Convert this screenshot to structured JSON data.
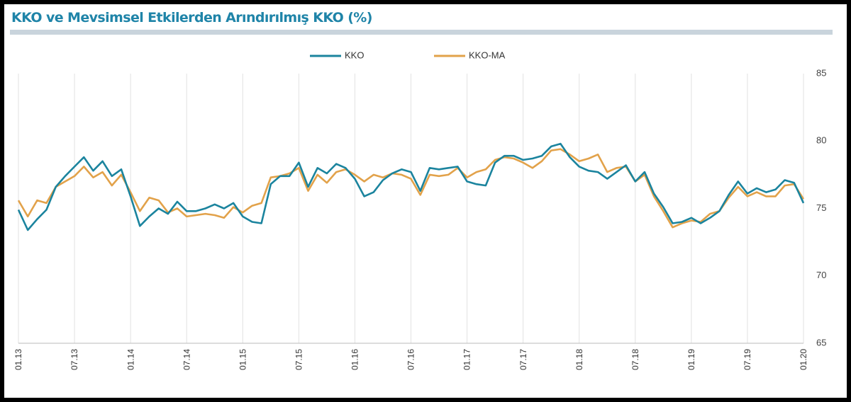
{
  "title": "KKO ve Mevsimsel Etkilerden Arındırılmış KKO (%)",
  "colors": {
    "title": "#1f84a8",
    "kko": "#1b849e",
    "kko_ma": "#e2a24a"
  },
  "chart_data": {
    "type": "line",
    "title": "KKO ve Mevsimsel Etkilerden Arındırılmış KKO (%)",
    "xlabel": "",
    "ylabel": "",
    "ylim": [
      65,
      85
    ],
    "yticks": [
      65,
      70,
      75,
      80,
      85
    ],
    "y_axis_position": "right",
    "grid": "vertical",
    "legend_position": "top-center",
    "xtick_labels": [
      "01.13",
      "07.13",
      "01.14",
      "07.14",
      "01.15",
      "07.15",
      "01.16",
      "07.16",
      "01.17",
      "07.17",
      "01.18",
      "07.18",
      "01.19",
      "07.19",
      "01.20"
    ],
    "series": [
      {
        "name": "KKO",
        "color": "#1b849e",
        "values": [
          74.9,
          73.4,
          74.2,
          74.9,
          76.6,
          77.4,
          78.1,
          78.8,
          77.8,
          78.5,
          77.4,
          77.9,
          75.9,
          73.7,
          74.4,
          75.0,
          74.6,
          75.5,
          74.8,
          74.8,
          75.0,
          75.3,
          75.0,
          75.4,
          74.4,
          74.0,
          73.9,
          76.8,
          77.4,
          77.4,
          78.4,
          76.6,
          78.0,
          77.6,
          78.3,
          78.0,
          77.2,
          75.9,
          76.2,
          77.1,
          77.6,
          77.9,
          77.7,
          76.3,
          78.0,
          77.9,
          78.0,
          78.1,
          77.0,
          76.8,
          76.7,
          78.4,
          78.9,
          78.9,
          78.6,
          78.7,
          78.9,
          79.6,
          79.8,
          78.8,
          78.1,
          77.8,
          77.7,
          77.2,
          77.7,
          78.2,
          77.0,
          77.7,
          76.1,
          75.1,
          73.9,
          74.0,
          74.3,
          73.9,
          74.3,
          74.8,
          76.0,
          77.0,
          76.1,
          76.5,
          76.2,
          76.4,
          77.1,
          76.9,
          75.4
        ]
      },
      {
        "name": "KKO-MA",
        "color": "#e2a24a",
        "values": [
          75.6,
          74.4,
          75.6,
          75.4,
          76.6,
          77.0,
          77.4,
          78.1,
          77.3,
          77.7,
          76.7,
          77.5,
          76.2,
          74.8,
          75.8,
          75.6,
          74.7,
          75.0,
          74.4,
          74.5,
          74.6,
          74.5,
          74.3,
          75.1,
          74.7,
          75.2,
          75.4,
          77.3,
          77.4,
          77.6,
          78.0,
          76.3,
          77.5,
          76.9,
          77.7,
          77.9,
          77.5,
          77.0,
          77.5,
          77.3,
          77.6,
          77.5,
          77.2,
          76.0,
          77.5,
          77.4,
          77.5,
          78.0,
          77.3,
          77.7,
          77.9,
          78.6,
          78.8,
          78.7,
          78.4,
          78.0,
          78.5,
          79.3,
          79.4,
          79.0,
          78.5,
          78.7,
          79.0,
          77.7,
          78.0,
          78.1,
          77.0,
          77.5,
          75.9,
          74.8,
          73.6,
          73.9,
          74.1,
          74.0,
          74.6,
          74.8,
          75.8,
          76.6,
          75.9,
          76.2,
          75.9,
          75.9,
          76.7,
          76.8,
          75.7
        ]
      }
    ]
  }
}
